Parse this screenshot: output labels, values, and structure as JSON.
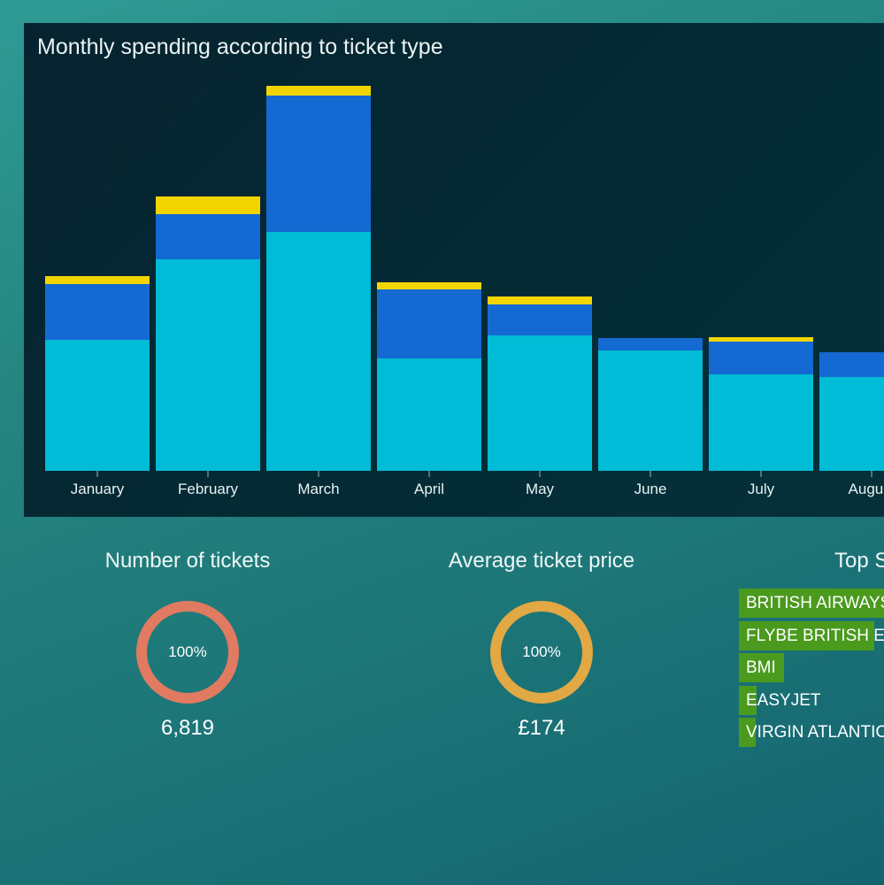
{
  "chart": {
    "title": "Monthly spending according to ticket type"
  },
  "chart_data": {
    "type": "bar",
    "stacked": true,
    "title": "Monthly spending according to ticket type",
    "categories": [
      "January",
      "February",
      "March",
      "April",
      "May",
      "June",
      "July",
      "August"
    ],
    "series": [
      {
        "color": "#00bcd6",
        "values": [
          148,
          239,
          270,
          127,
          153,
          136,
          109,
          106
        ]
      },
      {
        "color": "#1569d2",
        "values": [
          63,
          51,
          154,
          78,
          35,
          14,
          37,
          28
        ]
      },
      {
        "color": "#f2d500",
        "values": [
          9,
          20,
          11,
          8,
          9,
          0,
          5,
          0
        ]
      }
    ],
    "ylim": [
      0,
      435
    ],
    "grid": false,
    "legend": "none"
  },
  "stats": [
    {
      "title": "Number of tickets",
      "percent_label": "100%",
      "percent": 100,
      "value": "6,819",
      "color": "#e07a60"
    },
    {
      "title": "Average ticket price",
      "percent_label": "100%",
      "percent": 100,
      "value": "£174",
      "color": "#e1a843"
    }
  ],
  "suppliers": {
    "title": "Top Suppliers",
    "items": [
      {
        "label": "BRITISH AIRWAYS",
        "share": 1.0
      },
      {
        "label": "FLYBE BRITISH EUROPEAN",
        "share": 0.9
      },
      {
        "label": "BMI",
        "share": 0.3
      },
      {
        "label": "EASYJET",
        "share": 0.12
      },
      {
        "label": "VIRGIN ATLANTIC",
        "share": 0.11
      }
    ],
    "bar_color": "#4a9a1e"
  }
}
